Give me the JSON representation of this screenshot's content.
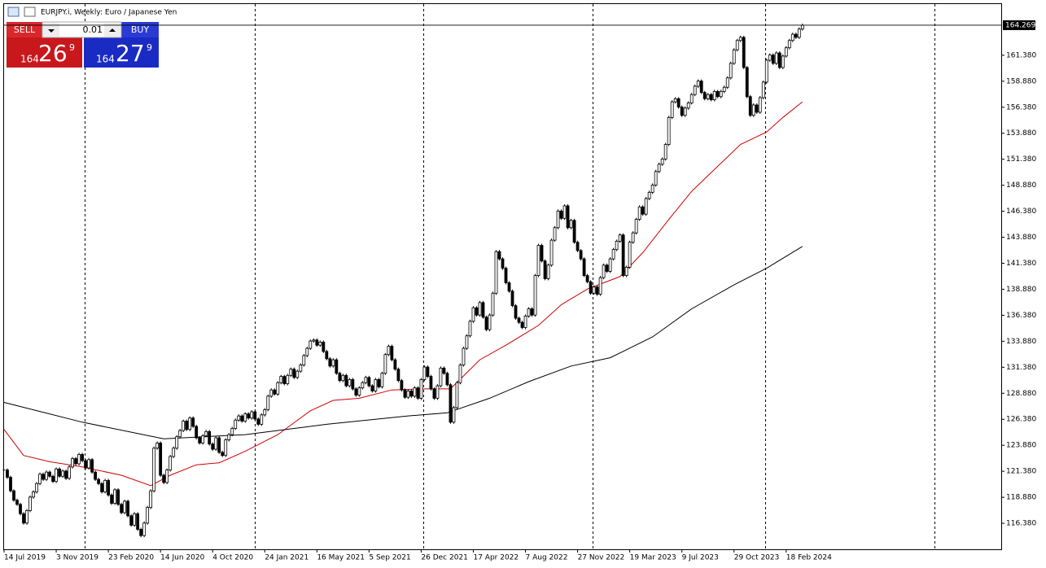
{
  "chart_data": {
    "type": "candlestick",
    "title": "EURJPY.i, Weekly:  Euro / Japanese Yen",
    "up_color": "#ffffff",
    "down_color": "#000000",
    "values": [
      121.5,
      120.8,
      119.5,
      118.6,
      118.2,
      117.3,
      116.4,
      117.6,
      118.9,
      119.4,
      120.2,
      121.1,
      120.6,
      121.3,
      120.9,
      120.4,
      121.6,
      120.9,
      121.4,
      120.7,
      121.8,
      122.6,
      122.1,
      123.0,
      122.4,
      121.7,
      122.5,
      121.3,
      120.6,
      120.2,
      119.4,
      120.5,
      119.1,
      118.3,
      119.6,
      118.2,
      117.4,
      118.5,
      117.1,
      116.2,
      117.3,
      115.8,
      115.2,
      116.4,
      117.9,
      119.5,
      123.6,
      124.1,
      121.0,
      120.3,
      121.5,
      122.8,
      123.6,
      124.7,
      125.3,
      126.2,
      125.4,
      126.5,
      125.7,
      124.6,
      124.1,
      124.8,
      125.2,
      124.0,
      123.5,
      124.6,
      123.2,
      122.9,
      124.4,
      124.9,
      125.5,
      126.3,
      126.7,
      126.2,
      126.9,
      126.5,
      127.1,
      126.4,
      125.9,
      126.8,
      127.3,
      128.6,
      129.2,
      128.8,
      129.9,
      130.5,
      129.8,
      130.6,
      131.2,
      130.4,
      131.0,
      131.6,
      132.5,
      133.2,
      133.9,
      134.0,
      133.5,
      133.8,
      132.9,
      132.2,
      131.5,
      132.1,
      130.8,
      130.1,
      130.6,
      129.6,
      130.2,
      129.3,
      128.7,
      129.4,
      129.9,
      130.4,
      129.6,
      129.1,
      130.2,
      129.5,
      130.8,
      132.6,
      133.4,
      132.1,
      131.2,
      130.1,
      129.2,
      128.5,
      129.1,
      128.6,
      129.4,
      128.4,
      130.2,
      131.4,
      130.5,
      129.3,
      128.4,
      129.6,
      131.3,
      130.8,
      129.7,
      126.1,
      127.5,
      129.9,
      131.6,
      133.2,
      134.4,
      135.8,
      137.1,
      136.4,
      137.6,
      136.2,
      135.0,
      136.4,
      138.5,
      142.5,
      141.8,
      140.9,
      139.5,
      138.7,
      137.3,
      136.1,
      135.7,
      135.2,
      136.3,
      137.0,
      136.4,
      140.2,
      143.1,
      141.6,
      139.9,
      141.2,
      143.6,
      144.8,
      146.4,
      145.7,
      146.9,
      144.8,
      145.5,
      143.4,
      142.6,
      141.8,
      140.2,
      139.6,
      138.5,
      139.1,
      138.4,
      140.0,
      141.2,
      140.6,
      141.8,
      142.7,
      143.5,
      144.1,
      140.2,
      141.0,
      143.4,
      144.3,
      145.6,
      146.8,
      146.1,
      147.6,
      148.2,
      148.9,
      150.2,
      150.9,
      151.4,
      152.8,
      155.4,
      156.9,
      157.2,
      156.4,
      155.6,
      156.3,
      156.8,
      157.6,
      158.4,
      158.9,
      157.8,
      157.2,
      157.6,
      157.1,
      157.9,
      157.4,
      157.9,
      158.3,
      159.2,
      160.6,
      161.9,
      162.8,
      163.1,
      160.2,
      157.4,
      155.6,
      156.6,
      155.9,
      157.3,
      158.8,
      160.9,
      161.4,
      160.6,
      161.6,
      160.2,
      161.3,
      162.1,
      162.8,
      163.4,
      163.1,
      163.9,
      164.269
    ],
    "lines": [
      {
        "color": "#d00000",
        "x": [
          0,
          6,
          14,
          24,
          36,
          45,
          51,
          59,
          66,
          74,
          84,
          94,
          101,
          109,
          119,
          129,
          137,
          146,
          154,
          164,
          171,
          179,
          189,
          196,
          204,
          211,
          219,
          226,
          234,
          239,
          245
        ],
        "values": [
          125.4,
          122.9,
          122.3,
          121.8,
          121.0,
          120.0,
          121.0,
          122.0,
          122.2,
          123.3,
          124.9,
          127.2,
          128.2,
          128.4,
          129.2,
          129.3,
          129.3,
          132.1,
          133.5,
          135.4,
          137.4,
          138.9,
          140.1,
          142.4,
          145.6,
          148.3,
          150.7,
          152.8,
          154.0,
          155.4,
          156.9
        ]
      },
      {
        "color": "#000000",
        "x": [
          0,
          24,
          49,
          74,
          99,
          124,
          136,
          149,
          161,
          174,
          186,
          199,
          211,
          224,
          234,
          245
        ],
        "values": [
          128.0,
          126.1,
          124.5,
          124.9,
          125.9,
          126.7,
          127.0,
          128.4,
          130.0,
          131.5,
          132.3,
          134.3,
          137.0,
          139.3,
          140.9,
          143.0
        ]
      }
    ],
    "current_price": {
      "value": 164.269,
      "label": "164.269"
    },
    "xlim": [
      0,
      306
    ],
    "ylim": [
      113.88,
      166.3
    ],
    "xticks": [
      {
        "value": 0,
        "label": "14 Jul 2019"
      },
      {
        "value": 16,
        "label": "3 Nov 2019"
      },
      {
        "value": 32,
        "label": "23 Feb 2020"
      },
      {
        "value": 48,
        "label": "14 Jun 2020"
      },
      {
        "value": 64,
        "label": "4 Oct 2020"
      },
      {
        "value": 80,
        "label": "24 Jan 2021"
      },
      {
        "value": 96,
        "label": "16 May 2021"
      },
      {
        "value": 112,
        "label": "5 Sep 2021"
      },
      {
        "value": 128,
        "label": "26 Dec 2021"
      },
      {
        "value": 144,
        "label": "17 Apr 2022"
      },
      {
        "value": 160,
        "label": "7 Aug 2022"
      },
      {
        "value": 176,
        "label": "27 Nov 2022"
      },
      {
        "value": 192,
        "label": "19 Mar 2023"
      },
      {
        "value": 208,
        "label": "9 Jul 2023"
      },
      {
        "value": 224,
        "label": "29 Oct 2023"
      },
      {
        "value": 240,
        "label": "18 Feb 2024"
      }
    ],
    "yticks": [
      {
        "value": 116.38,
        "label": "116.380"
      },
      {
        "value": 118.88,
        "label": "118.880"
      },
      {
        "value": 121.38,
        "label": "121.380"
      },
      {
        "value": 123.88,
        "label": "123.880"
      },
      {
        "value": 126.38,
        "label": "126.380"
      },
      {
        "value": 128.88,
        "label": "128.880"
      },
      {
        "value": 131.38,
        "label": "131.380"
      },
      {
        "value": 133.88,
        "label": "133.880"
      },
      {
        "value": 136.38,
        "label": "136.380"
      },
      {
        "value": 138.88,
        "label": "138.880"
      },
      {
        "value": 141.38,
        "label": "141.380"
      },
      {
        "value": 143.88,
        "label": "143.880"
      },
      {
        "value": 146.38,
        "label": "146.380"
      },
      {
        "value": 148.88,
        "label": "148.880"
      },
      {
        "value": 151.38,
        "label": "151.380"
      },
      {
        "value": 153.88,
        "label": "153.880"
      },
      {
        "value": 156.38,
        "label": "156.380"
      },
      {
        "value": 158.88,
        "label": "158.880"
      },
      {
        "value": 161.38,
        "label": "161.380"
      }
    ]
  },
  "trade_panel": {
    "sell_label": "SELL",
    "buy_label": "BUY",
    "lot": "0.01",
    "sell_price": {
      "big_figure": "164",
      "pips": "26",
      "fraction": "9"
    },
    "buy_price": {
      "big_figure": "164",
      "pips": "27",
      "fraction": "9"
    }
  }
}
